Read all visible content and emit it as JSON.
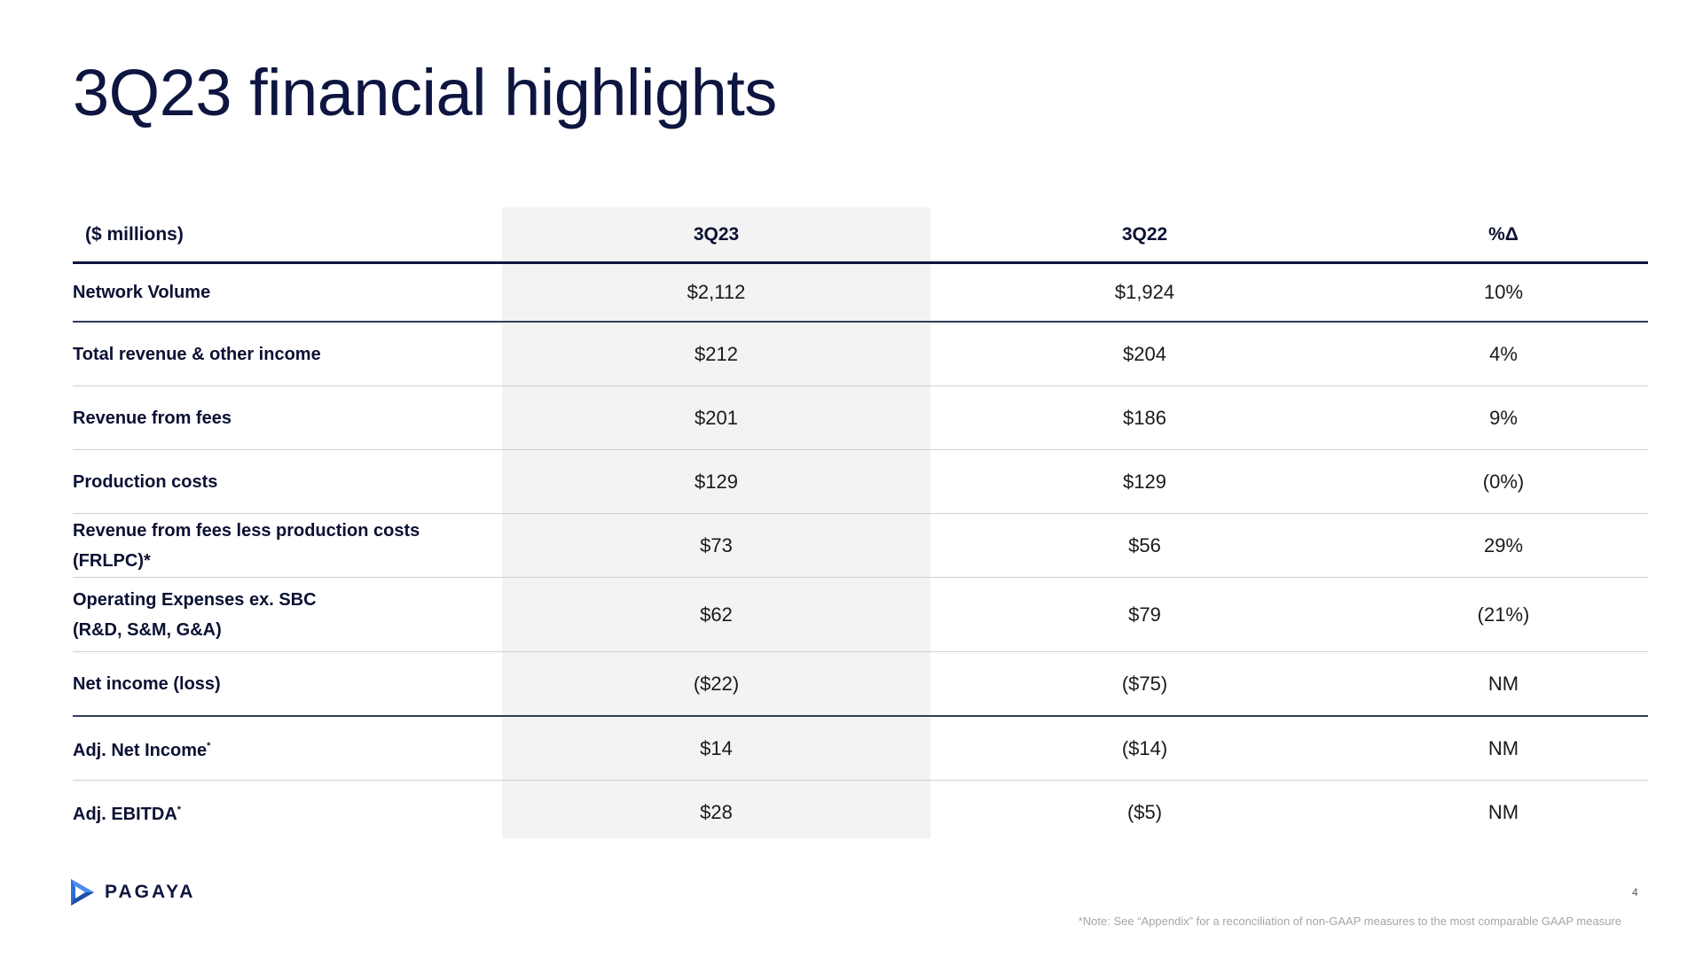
{
  "title": "3Q23 financial highlights",
  "table": {
    "headers": [
      "($ millions)",
      "3Q23",
      "3Q22",
      "%Δ"
    ],
    "rows": [
      {
        "label": "Network Volume",
        "q3_23": "$2,112",
        "q3_22": "$1,924",
        "change": "10%"
      },
      {
        "label": "Total revenue & other income",
        "q3_23": "$212",
        "q3_22": "$204",
        "change": "4%"
      },
      {
        "label": "Revenue from fees",
        "q3_23": "$201",
        "q3_22": "$186",
        "change": "9%"
      },
      {
        "label": "Production costs",
        "q3_23": "$129",
        "q3_22": "$129",
        "change": "(0%)"
      },
      {
        "label": "Revenue from fees less production costs (FRLPC)*",
        "q3_23": "$73",
        "q3_22": "$56",
        "change": "29%"
      },
      {
        "label_line1": "Operating Expenses ex. SBC",
        "label_line2": "(R&D, S&M, G&A)",
        "q3_23": "$62",
        "q3_22": "$79",
        "change": "(21%)"
      },
      {
        "label": "Net income (loss)",
        "q3_23": "($22)",
        "q3_22": "($75)",
        "change": "NM"
      },
      {
        "label": "Adj. Net Income",
        "sup": "*",
        "q3_23": "$14",
        "q3_22": "($14)",
        "change": "NM"
      },
      {
        "label": "Adj. EBITDA",
        "sup": "*",
        "q3_23": "$28",
        "q3_22": "($5)",
        "change": "NM"
      }
    ]
  },
  "logo": {
    "text": "PAGAYA",
    "icon": "pagaya-play-icon"
  },
  "page_number": "4",
  "footnote": "*Note: See “Appendix” for a reconciliation of non-GAAP measures to the most comparable GAAP measure",
  "colors": {
    "navy": "#0d1540",
    "shade": "#f3f3f3",
    "logo_blue": "#2f6fd6"
  }
}
